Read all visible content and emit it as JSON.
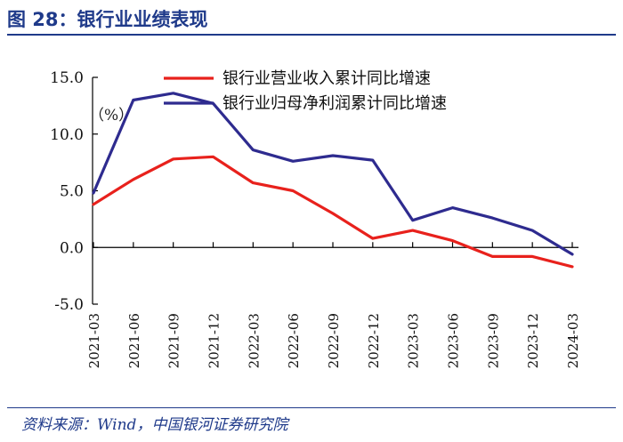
{
  "figure": {
    "title": "图 28：银行业业绩表现",
    "source": "资料来源：Wind，中国银河证券研究院"
  },
  "colors": {
    "accent": "#1f3a8a",
    "series_revenue": "#e8211c",
    "series_profit": "#2e2b8f",
    "axis": "#000000"
  },
  "chart_data": {
    "type": "line",
    "title": "",
    "xlabel": "",
    "ylabel": "",
    "unit_label": "（%）",
    "categories": [
      "2021-03",
      "2021-06",
      "2021-09",
      "2021-12",
      "2022-03",
      "2022-06",
      "2022-09",
      "2022-12",
      "2023-03",
      "2023-06",
      "2023-09",
      "2023-12",
      "2024-03"
    ],
    "ylim": [
      -5.0,
      15.0
    ],
    "yticks": [
      "15.0",
      "10.0",
      "5.0",
      "0.0",
      "-5.0"
    ],
    "ytick_values": [
      15,
      10,
      5,
      0,
      -5
    ],
    "legend_position": "top-right",
    "grid": false,
    "series": [
      {
        "name": "银行业营业收入累计同比增速",
        "color": "#e8211c",
        "values": [
          3.8,
          6.0,
          7.8,
          8.0,
          5.7,
          5.0,
          3.0,
          0.8,
          1.5,
          0.6,
          -0.8,
          -0.8,
          -1.7
        ]
      },
      {
        "name": "银行业归母净利润累计同比增速",
        "color": "#2e2b8f",
        "values": [
          4.8,
          13.0,
          13.6,
          12.7,
          8.6,
          7.6,
          8.1,
          7.7,
          2.4,
          3.5,
          2.6,
          1.5,
          -0.6
        ]
      }
    ]
  }
}
